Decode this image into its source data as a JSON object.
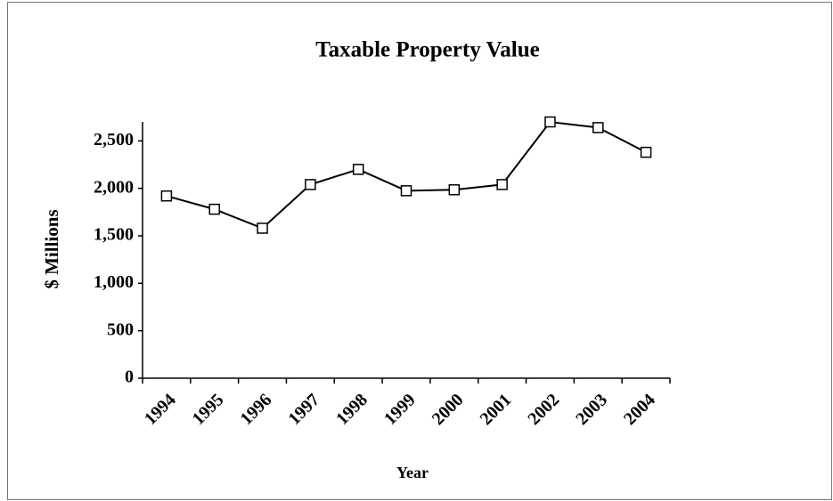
{
  "chart_data": {
    "type": "line",
    "title": "Taxable Property Value",
    "xlabel": "Year",
    "ylabel": "$ Millions",
    "categories": [
      "1994",
      "1995",
      "1996",
      "1997",
      "1998",
      "1999",
      "2000",
      "2001",
      "2002",
      "2003",
      "2004"
    ],
    "values": [
      1920,
      1780,
      1580,
      2040,
      2200,
      1975,
      1985,
      2040,
      2700,
      2640,
      2380
    ],
    "color": "#000000",
    "ylim": [
      0,
      2700
    ],
    "yticks": [
      0,
      500,
      {
        "value": 1000,
        "label": "1,000"
      },
      {
        "value": 1500,
        "label": "1,500"
      },
      {
        "value": 2000,
        "label": "2,000"
      },
      {
        "value": 2500,
        "label": "2,500"
      }
    ],
    "grid": false
  }
}
